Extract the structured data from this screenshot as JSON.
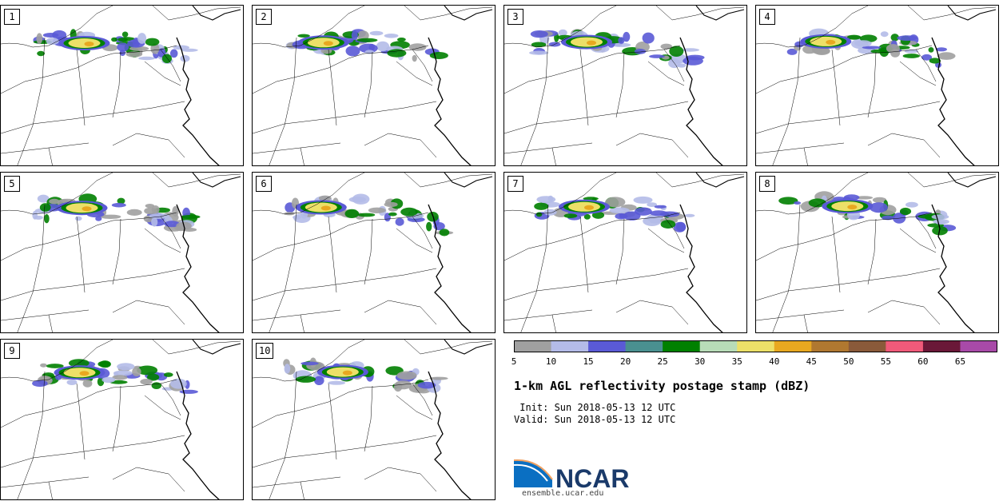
{
  "panels": [
    {
      "label": "1"
    },
    {
      "label": "2"
    },
    {
      "label": "3"
    },
    {
      "label": "4"
    },
    {
      "label": "5"
    },
    {
      "label": "6"
    },
    {
      "label": "7"
    },
    {
      "label": "8"
    },
    {
      "label": "9"
    },
    {
      "label": "10"
    }
  ],
  "colorbar": {
    "ticks": [
      "5",
      "10",
      "15",
      "20",
      "25",
      "30",
      "35",
      "40",
      "45",
      "50",
      "55",
      "60",
      "65"
    ],
    "colors": [
      "#a0a0a0",
      "#b4bbe8",
      "#5a5ad6",
      "#4a9090",
      "#008000",
      "#b8dcb8",
      "#ece068",
      "#e8a820",
      "#b07830",
      "#8a5a3a",
      "#f05a7a",
      "#6a1838",
      "#a84aa8"
    ]
  },
  "title": "1-km AGL reflectivity postage stamp (dBZ)",
  "init": " Init: Sun 2018-05-13 12 UTC",
  "valid": "Valid: Sun 2018-05-13 12 UTC",
  "logo": {
    "name": "NCAR",
    "url": "ensemble.ucar.edu"
  }
}
